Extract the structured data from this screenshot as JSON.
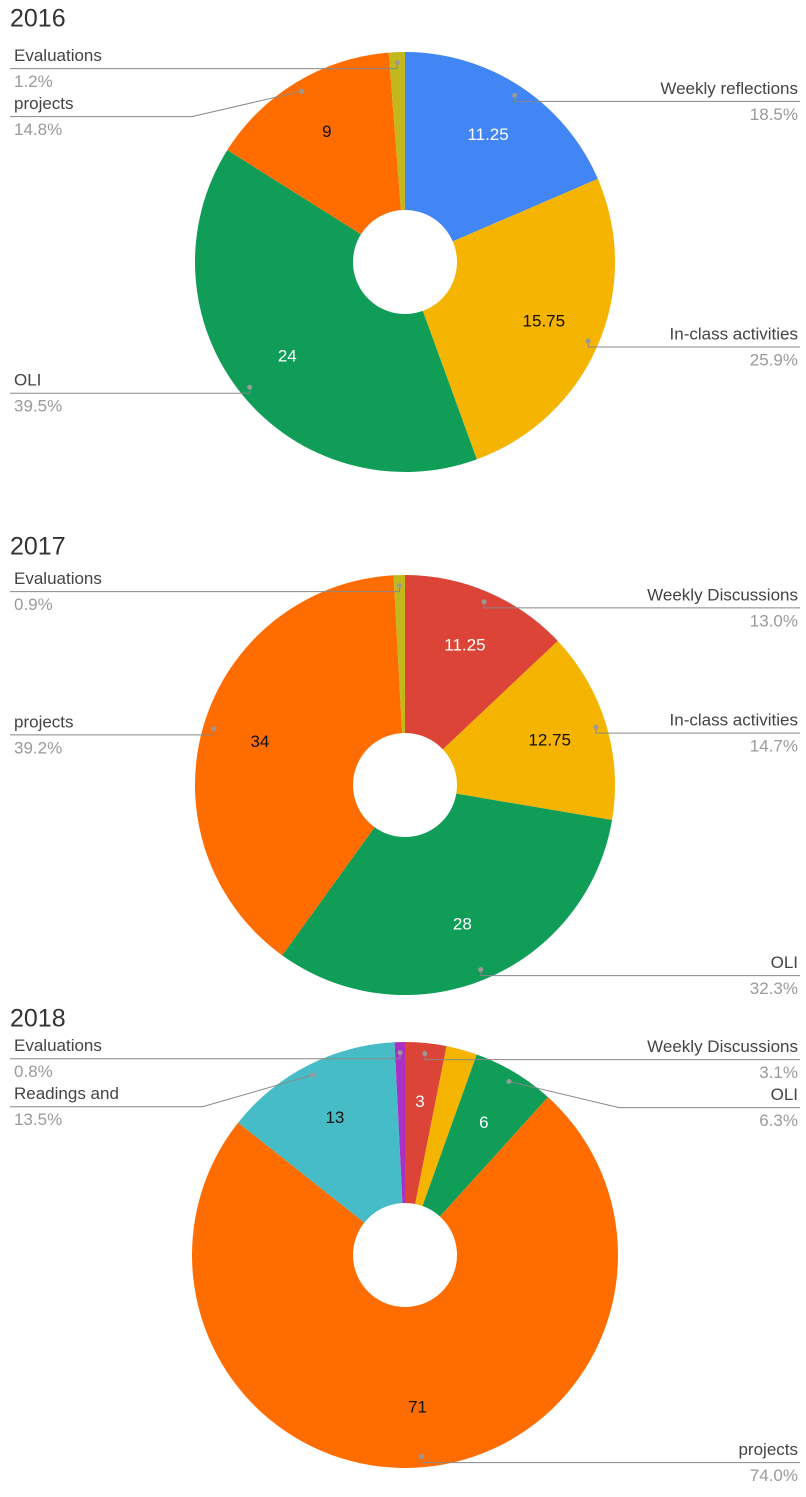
{
  "chart_data": [
    {
      "type": "pie",
      "title": "2016",
      "categories": [
        "Weekly reflections",
        "In-class activities",
        "OLI",
        "projects",
        "Evaluations"
      ],
      "values": [
        11.25,
        15.75,
        24,
        9,
        0.75
      ],
      "percent_labels": [
        "18.5%",
        "25.9%",
        "39.5%",
        "14.8%",
        "1.2%"
      ],
      "colors": [
        "#4285f4",
        "#f4b400",
        "#0f9d58",
        "#ff6d00",
        "#c2b81c"
      ]
    },
    {
      "type": "pie",
      "title": "2017",
      "categories": [
        "Weekly Discussions",
        "In-class activities",
        "OLI",
        "projects",
        "Evaluations"
      ],
      "values": [
        11.25,
        12.75,
        28,
        34,
        0.75
      ],
      "percent_labels": [
        "13.0%",
        "14.7%",
        "32.3%",
        "39.2%",
        "0.9%"
      ],
      "colors": [
        "#db4437",
        "#f4b400",
        "#0f9d58",
        "#ff6d00",
        "#c2b81c"
      ]
    },
    {
      "type": "pie",
      "title": "2018",
      "categories": [
        "Weekly Discussions",
        null,
        "OLI",
        "projects",
        "Readings and",
        "Evaluations"
      ],
      "values": [
        3,
        2.25,
        6,
        71,
        13,
        0.75
      ],
      "percent_labels": [
        "3.1%",
        null,
        "6.3%",
        "74.0%",
        "13.5%",
        "0.8%"
      ],
      "colors": [
        "#db4437",
        "#f4b400",
        "#0f9d58",
        "#ff6d00",
        "#46bdc6",
        "#ab30c4"
      ]
    }
  ]
}
